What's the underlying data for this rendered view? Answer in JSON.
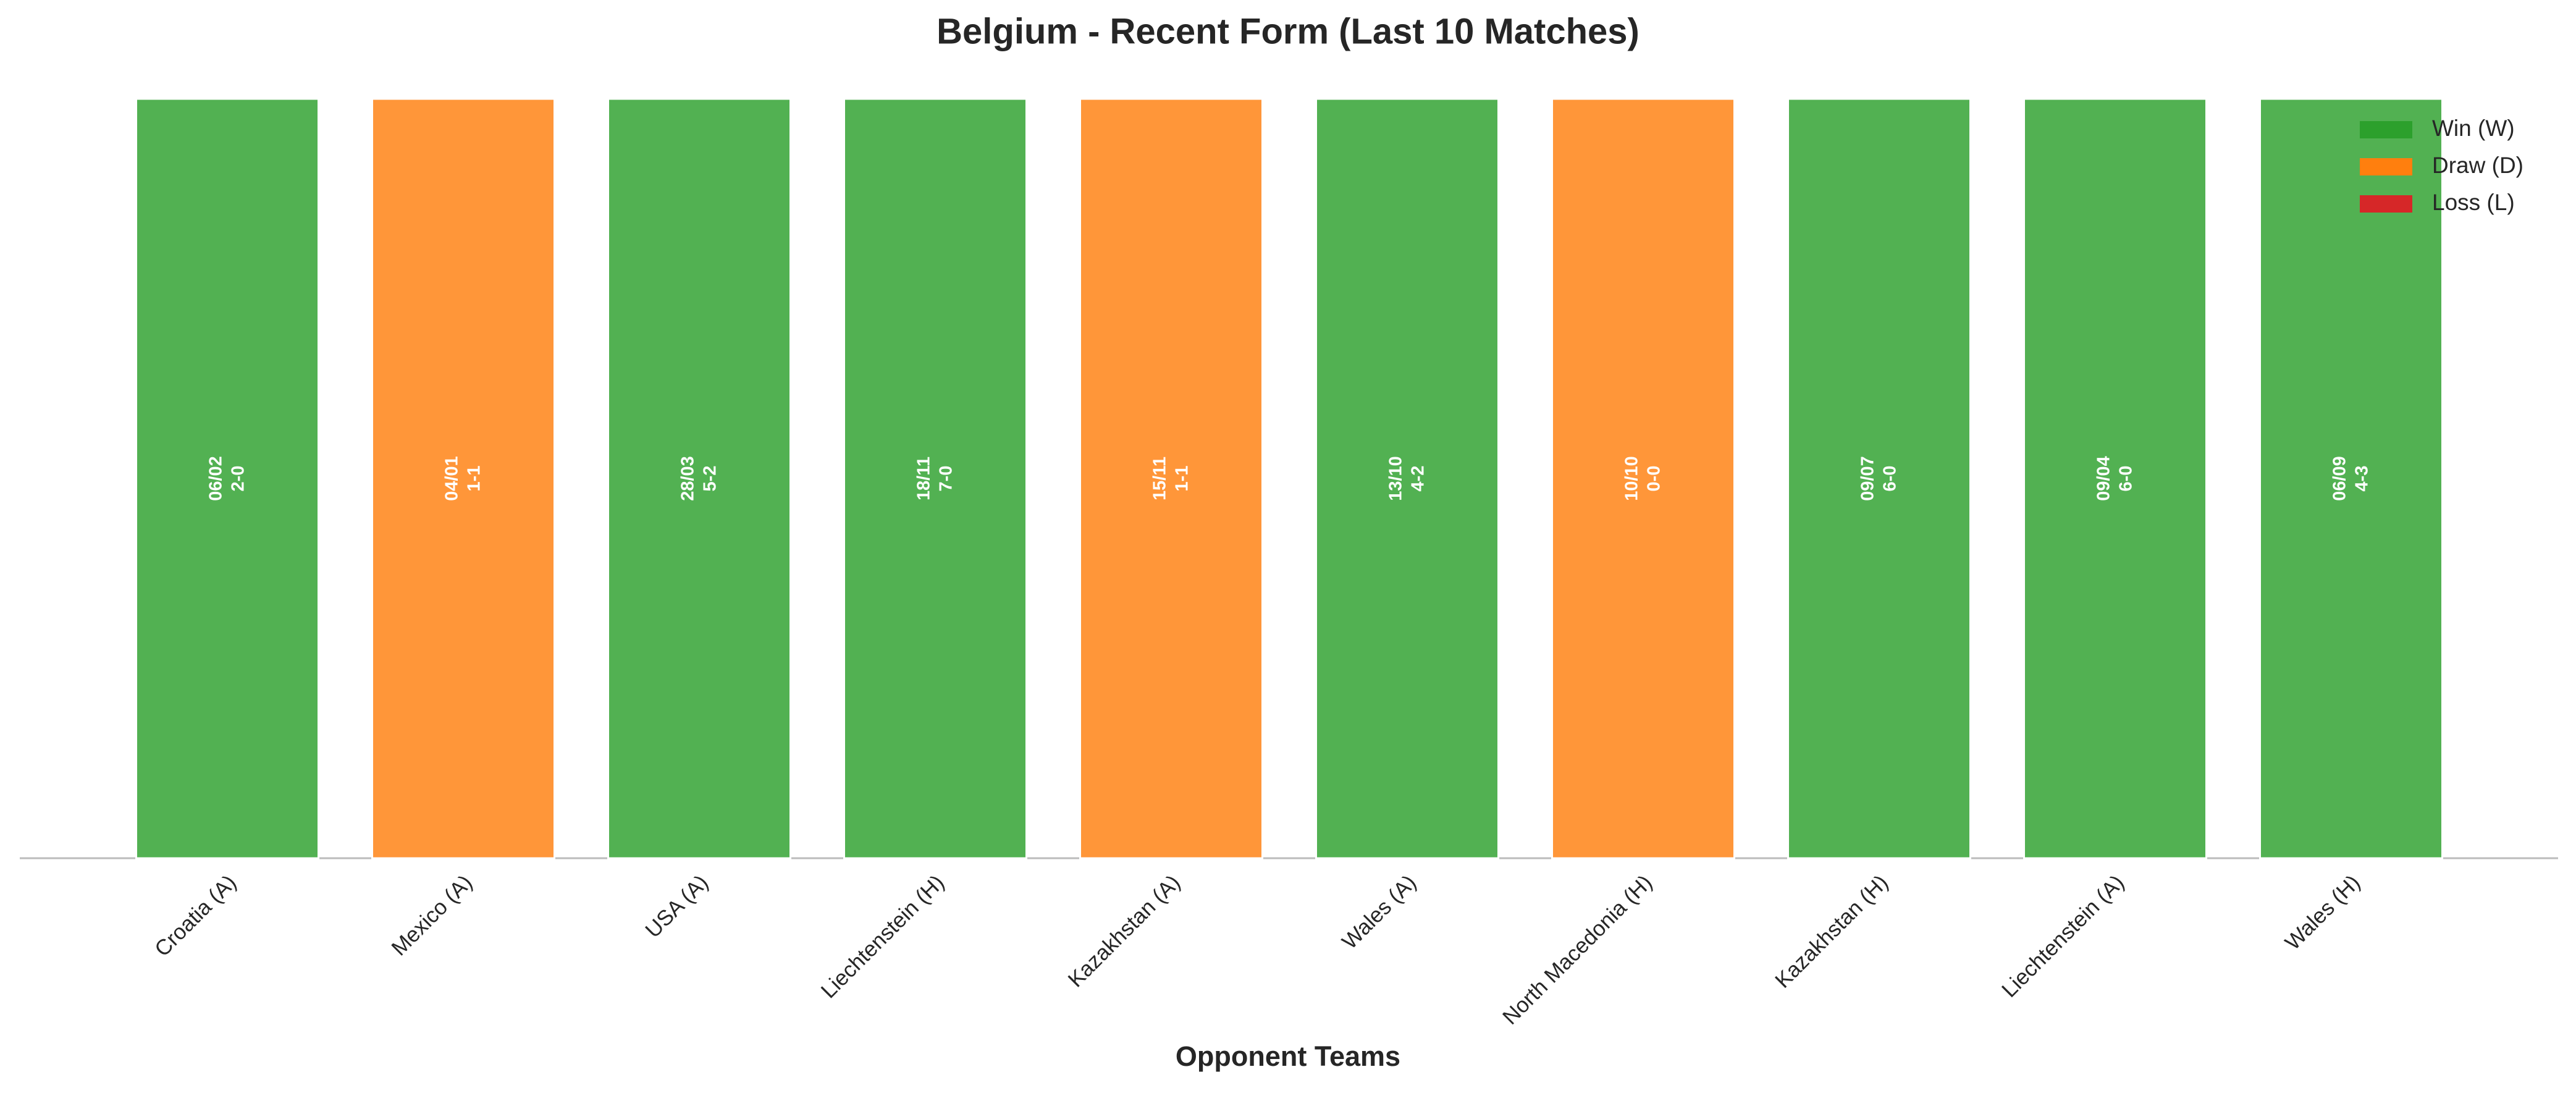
{
  "chart_data": {
    "type": "bar",
    "title": "Belgium - Recent Form (Last 10 Matches)",
    "xlabel": "Opponent Teams",
    "categories": [
      "Croatia (A)",
      "Mexico (A)",
      "USA (A)",
      "Liechtenstein (H)",
      "Kazakhstan (A)",
      "Wales (A)",
      "North Macedonia (H)",
      "Kazakhstan (H)",
      "Liechtenstein (A)",
      "Wales (H)"
    ],
    "values": [
      1,
      1,
      1,
      1,
      1,
      1,
      1,
      1,
      1,
      1
    ],
    "dates": [
      "06/02",
      "04/01",
      "28/03",
      "18/11",
      "15/11",
      "13/10",
      "10/10",
      "09/07",
      "09/04",
      "06/09"
    ],
    "scores": [
      "2-0",
      "1-1",
      "5-2",
      "7-0",
      "1-1",
      "4-2",
      "0-0",
      "6-0",
      "6-0",
      "4-3"
    ],
    "colors": [
      "#2ca02c",
      "#ff7f0e",
      "#2ca02c",
      "#2ca02c",
      "#ff7f0e",
      "#2ca02c",
      "#ff7f0e",
      "#2ca02c",
      "#2ca02c",
      "#2ca02c"
    ],
    "ylim": [
      0,
      1
    ],
    "legend": [
      {
        "name": "Win (W)",
        "color": "#2ca02c"
      },
      {
        "name": "Draw (D)",
        "color": "#ff7f0e"
      },
      {
        "name": "Loss (L)",
        "color": "#d62728"
      }
    ],
    "legend_position": "upper right"
  }
}
